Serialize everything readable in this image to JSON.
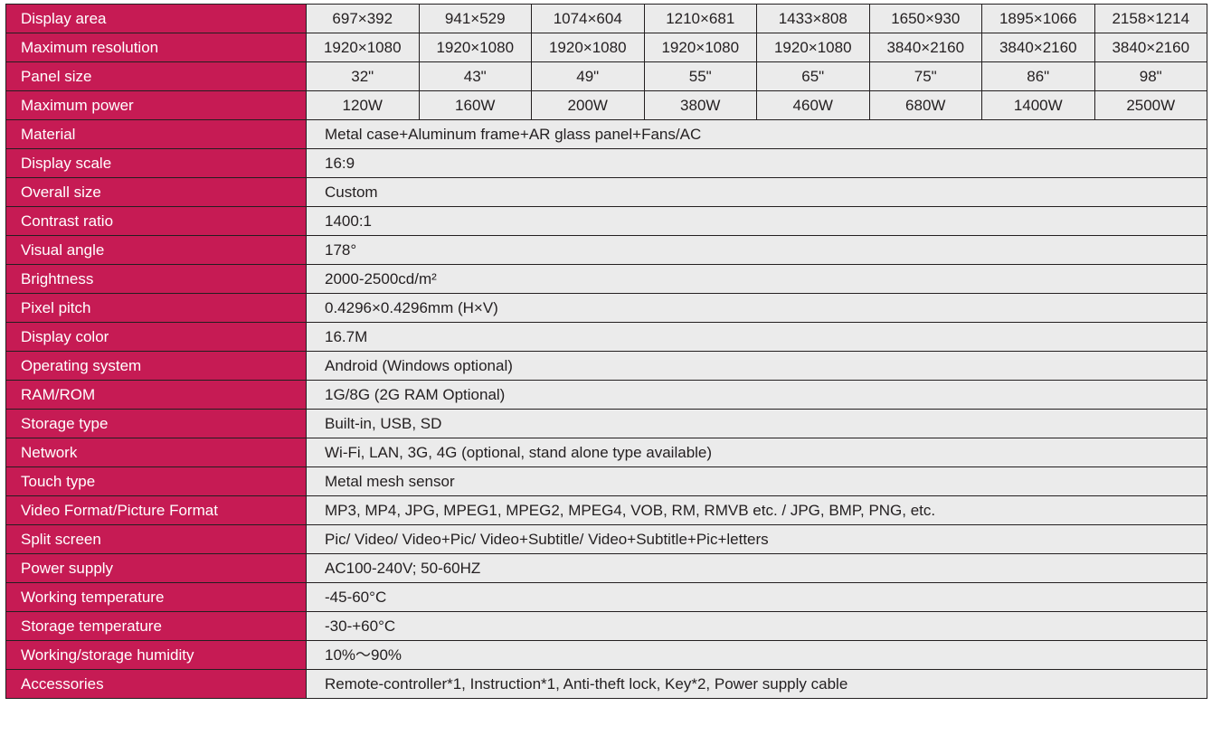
{
  "table": {
    "colors": {
      "header_bg": "#c61b54",
      "header_text": "#ffffff",
      "cell_bg": "#ebebeb",
      "cell_text": "#231f20",
      "border": "#231f20"
    },
    "font_size_pt": 13,
    "multi_rows": [
      {
        "label": "Display area",
        "values": [
          "697×392",
          "941×529",
          "1074×604",
          "1210×681",
          "1433×808",
          "1650×930",
          "1895×1066",
          "2158×1214"
        ]
      },
      {
        "label": "Maximum resolution",
        "values": [
          "1920×1080",
          "1920×1080",
          "1920×1080",
          "1920×1080",
          "1920×1080",
          "3840×2160",
          "3840×2160",
          "3840×2160"
        ]
      },
      {
        "label": "Panel size",
        "values": [
          "32\"",
          "43\"",
          "49\"",
          "55\"",
          "65\"",
          "75\"",
          "86\"",
          "98\""
        ]
      },
      {
        "label": "Maximum power",
        "values": [
          "120W",
          "160W",
          "200W",
          "380W",
          "460W",
          "680W",
          "1400W",
          "2500W"
        ]
      }
    ],
    "single_rows": [
      {
        "label": "Material",
        "value": "Metal case+Aluminum frame+AR glass panel+Fans/AC"
      },
      {
        "label": "Display scale",
        "value": "16:9"
      },
      {
        "label": "Overall size",
        "value": "Custom"
      },
      {
        "label": "Contrast ratio",
        "value": "1400:1"
      },
      {
        "label": "Visual angle",
        "value": "178°"
      },
      {
        "label": "Brightness",
        "value": "2000-2500cd/m²"
      },
      {
        "label": "Pixel pitch",
        "value": "0.4296×0.4296mm (H×V)"
      },
      {
        "label": "Display color",
        "value": "16.7M"
      },
      {
        "label": "Operating system",
        "value": "Android (Windows optional)"
      },
      {
        "label": "RAM/ROM",
        "value": "1G/8G (2G RAM Optional)"
      },
      {
        "label": "Storage type",
        "value": "Built-in, USB, SD"
      },
      {
        "label": "Network",
        "value": "Wi-Fi, LAN, 3G, 4G (optional, stand alone type available)"
      },
      {
        "label": "Touch type",
        "value": "Metal mesh sensor"
      },
      {
        "label": "Video Format/Picture Format",
        "value": "MP3, MP4, JPG, MPEG1, MPEG2, MPEG4, VOB, RM, RMVB etc. / JPG, BMP, PNG, etc."
      },
      {
        "label": "Split screen",
        "value": "Pic/ Video/ Video+Pic/ Video+Subtitle/ Video+Subtitle+Pic+letters"
      },
      {
        "label": "Power supply",
        "value": "AC100-240V; 50-60HZ"
      },
      {
        "label": "Working temperature",
        "value": "-45-60°C"
      },
      {
        "label": "Storage temperature",
        "value": "-30-+60°C"
      },
      {
        "label": "Working/storage humidity",
        "value": "10%～90%"
      },
      {
        "label": "Accessories",
        "value": "Remote-controller*1, Instruction*1, Anti-theft lock, Key*2, Power supply cable"
      }
    ]
  }
}
